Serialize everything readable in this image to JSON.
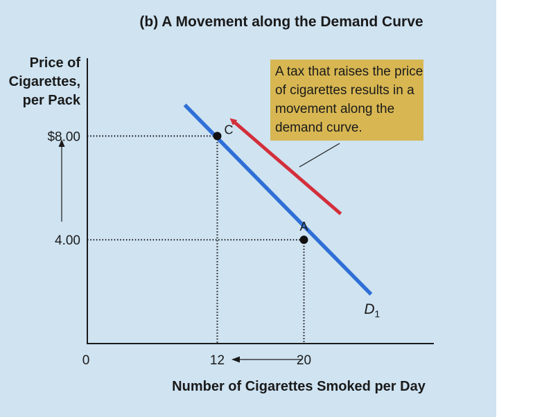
{
  "chart_data": {
    "type": "line",
    "title": "(b) A Movement along the Demand Curve",
    "ylabel_lines": [
      "Price of",
      "Cigarettes,",
      "per Pack"
    ],
    "xlabel": "Number of Cigarettes Smoked per Day",
    "origin_label": "0",
    "x_ticks": [
      {
        "value": 12,
        "label": "12"
      },
      {
        "value": 20,
        "label": "20"
      }
    ],
    "y_ticks": [
      {
        "value": 8,
        "label": "$8.00"
      },
      {
        "value": 4,
        "label": "4.00"
      }
    ],
    "xlim": [
      0,
      32
    ],
    "ylim": [
      0,
      11
    ],
    "series": [
      {
        "name": "D",
        "subscript": "1",
        "color": "#2f6fd6",
        "x": [
          9,
          26.2
        ],
        "y": [
          9.2,
          1.9
        ]
      }
    ],
    "points": [
      {
        "label": "C",
        "x": 12,
        "y": 8
      },
      {
        "label": "A",
        "x": 20,
        "y": 4
      }
    ],
    "movement_arrow": {
      "color": "#d32f3b",
      "from": [
        23.4,
        5.0
      ],
      "to": [
        13.4,
        8.6
      ]
    },
    "annotation": {
      "lines": [
        "A tax that raises the price",
        "of cigarettes results in a",
        "movement along the",
        "demand curve."
      ],
      "background": "#d8b752"
    },
    "grid": false
  }
}
